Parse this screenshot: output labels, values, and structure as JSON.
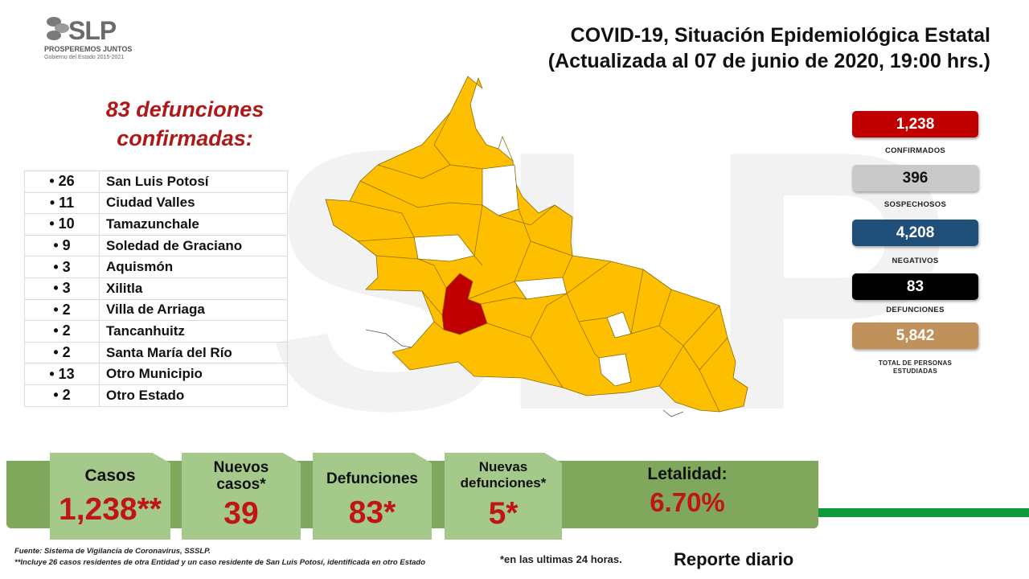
{
  "header": {
    "logo_text": "SLP",
    "logo_subtitle": "PROSPEREMOS JUNTOS",
    "logo_tagline": "Gobierno del Estado 2015-2021",
    "title_line1": "COVID-19, Situación Epidemiológica Estatal",
    "title_line2": "(Actualizada al 07 de junio de 2020, 19:00 hrs.)"
  },
  "watermark": "SLP",
  "deaths": {
    "heading_line1": "83 defunciones",
    "heading_line2": "confirmadas:",
    "items": [
      {
        "count": "• 26",
        "municipality": "San Luis Potosí"
      },
      {
        "count": "• 11",
        "municipality": "Ciudad Valles"
      },
      {
        "count": "• 10",
        "municipality": "Tamazunchale"
      },
      {
        "count": "• 9",
        "municipality": "Soledad de Graciano"
      },
      {
        "count": "• 3",
        "municipality": "Aquismón"
      },
      {
        "count": "• 3",
        "municipality": "Xilitla"
      },
      {
        "count": "• 2",
        "municipality": "Villa de Arriaga"
      },
      {
        "count": "• 2",
        "municipality": "Tancanhuitz"
      },
      {
        "count": "• 2",
        "municipality": "Santa María del Río"
      },
      {
        "count": "• 13",
        "municipality": "Otro Municipio"
      },
      {
        "count": "• 2",
        "municipality": "Otro Estado"
      }
    ]
  },
  "stats": {
    "confirmed_value": "1,238",
    "confirmed_label": "CONFIRMADOS",
    "suspected_value": "396",
    "suspected_label": "SOSPECHOSOS",
    "negative_value": "4,208",
    "negative_label": "NEGATIVOS",
    "deaths_value": "83",
    "deaths_label": "DEFUNCIONES",
    "total_value": "5,842",
    "total_label_line1": "TOTAL DE PERSONAS",
    "total_label_line2": "ESTUDIADAS",
    "colors": {
      "confirmed": "#c00000",
      "suspected": "#c9c9c9",
      "negative": "#1f4e79",
      "deaths": "#000000",
      "total": "#c0915a"
    }
  },
  "map_colors": {
    "affected": "#fdbf00",
    "unaffected": "#ffffff",
    "highlight": "#c00000"
  },
  "summary": {
    "cases_label": "Casos",
    "cases_value": "1,238**",
    "new_cases_label_line1": "Nuevos",
    "new_cases_label_line2": "casos*",
    "new_cases_value": "39",
    "deaths_label": "Defunciones",
    "deaths_value": "83*",
    "new_deaths_label_line1": "Nuevas",
    "new_deaths_label_line2": "defunciones*",
    "new_deaths_value": "5*",
    "lethality_label": "Letalidad:",
    "lethality_value": "6.70%"
  },
  "footer": {
    "source": "Fuente: Sistema de Vigilancia de Coronavirus, SSSLP.",
    "note": "**Incluye 26 casos residentes de otra Entidad y un caso residente de San Luis Potosí, identificada en otro Estado",
    "last24": "*en las ultimas 24 horas.",
    "report": "Reporte diario"
  }
}
